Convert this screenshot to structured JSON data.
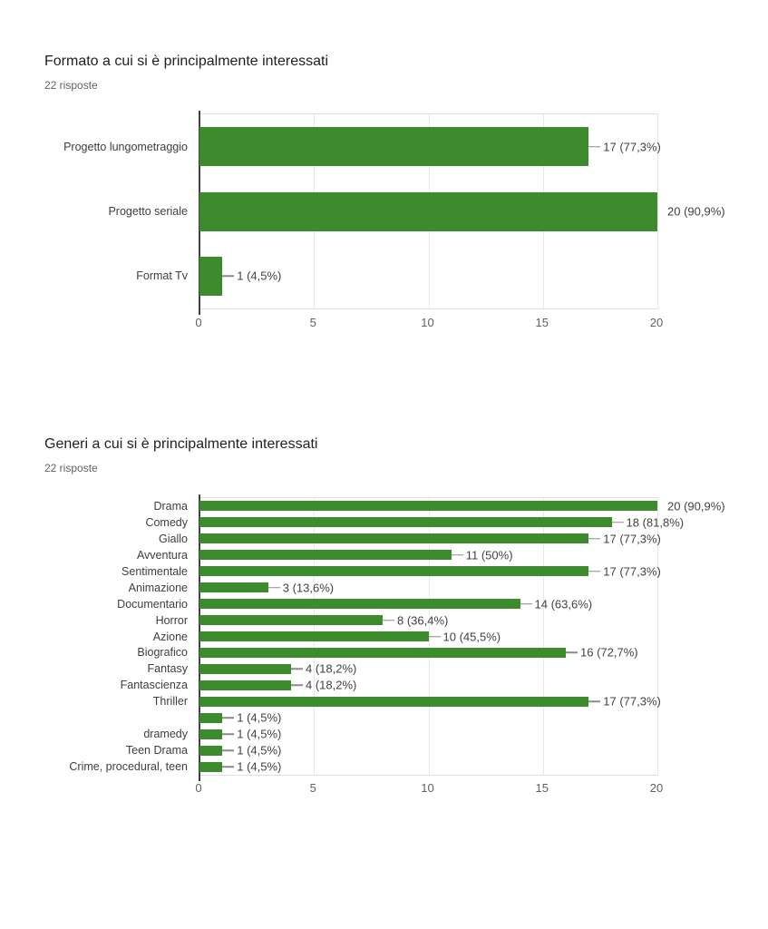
{
  "chart_data": [
    {
      "type": "bar",
      "orientation": "horizontal",
      "title": "Formato a cui si è principalmente interessati",
      "subtitle": "22 risposte",
      "categories": [
        "Progetto lungometraggio",
        "Progetto seriale",
        "Format Tv"
      ],
      "values": [
        17,
        20,
        1
      ],
      "value_labels": [
        "17 (77,3%)",
        "20 (90,9%)",
        "1 (4,5%)"
      ],
      "xlabel": "",
      "ylabel": "",
      "xlim": [
        0,
        20
      ],
      "xticks": [
        0,
        5,
        10,
        15,
        20
      ],
      "grid": true,
      "legend": false,
      "bar_color": "#3c8c2e"
    },
    {
      "type": "bar",
      "orientation": "horizontal",
      "title": "Generi a cui si è principalmente interessati",
      "subtitle": "22 risposte",
      "categories": [
        "Drama",
        "Comedy",
        "Giallo",
        "Avventura",
        "Sentimentale",
        "Animazione",
        "Documentario",
        "Horror",
        "Azione",
        "Biografico",
        "Fantasy",
        "Fantascienza",
        "Thriller",
        "",
        "dramedy",
        "Teen Drama",
        "Crime, procedural, teen"
      ],
      "values": [
        20,
        18,
        17,
        11,
        17,
        3,
        14,
        8,
        10,
        16,
        4,
        4,
        17,
        1,
        1,
        1,
        1
      ],
      "value_labels": [
        "20 (90,9%)",
        "18 (81,8%)",
        "17 (77,3%)",
        "11 (50%)",
        "17 (77,3%)",
        "3 (13,6%)",
        "14 (63,6%)",
        "8 (36,4%)",
        "10 (45,5%)",
        "16 (72,7%)",
        "4 (18,2%)",
        "4 (18,2%)",
        "17 (77,3%)",
        "1 (4,5%)",
        "1 (4,5%)",
        "1 (4,5%)",
        "1 (4,5%)"
      ],
      "xlabel": "",
      "ylabel": "",
      "xlim": [
        0,
        20
      ],
      "xticks": [
        0,
        5,
        10,
        15,
        20
      ],
      "grid": true,
      "legend": false,
      "bar_color": "#3c8c2e"
    }
  ],
  "colors": {
    "bar_green": "#3c8c2e",
    "axis_line": "#424242",
    "gridline": "#e9e9e9",
    "title_text": "#202124",
    "subtitle_text": "#5f6368"
  }
}
